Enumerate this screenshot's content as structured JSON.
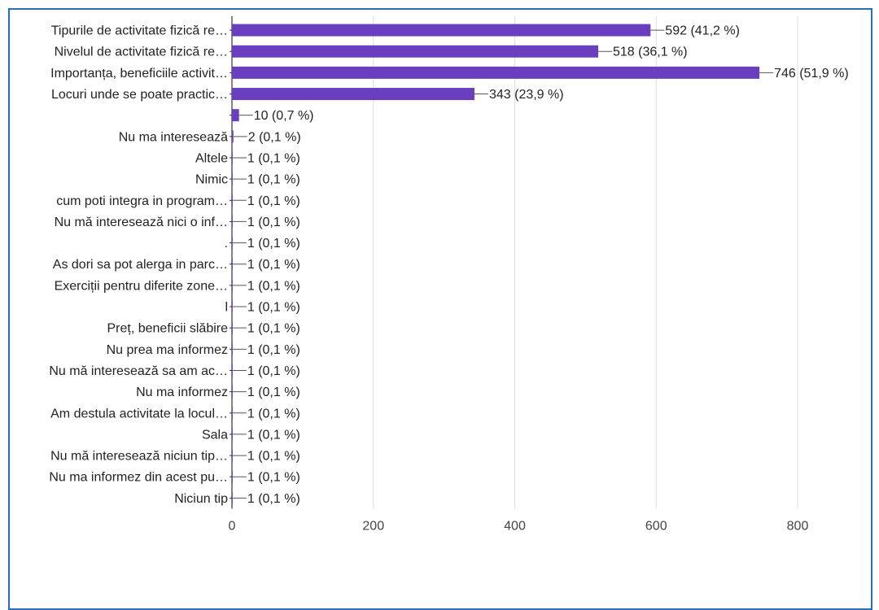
{
  "chart_data": {
    "type": "bar",
    "orientation": "horizontal",
    "title": "",
    "xlabel": "",
    "ylabel": "",
    "xlim": [
      0,
      800
    ],
    "x_ticks": [
      "0",
      "200",
      "400",
      "600",
      "800"
    ],
    "grid": true,
    "legend": "none",
    "bar_color": "#6a3fbf",
    "categories": [
      "Tipurile de activitate fizică re…",
      "Nivelul de activitate fizică re…",
      "Importanța, beneficiile activit…",
      "Locuri unde se poate practic…",
      "",
      "Nu ma interesează",
      "Altele",
      "Nimic",
      "cum poti integra in program…",
      "Nu mă interesează nici o inf…",
      ".",
      "As dori sa pot alerga in parc…",
      "Exerciții pentru diferite zone…",
      "l",
      "Preț, beneficii slăbire",
      "Nu prea ma informez",
      "Nu mă interesează sa am ac…",
      "Nu ma informez",
      "Am destula activitate la locul…",
      "Sala",
      "Nu mă interesează niciun tip…",
      "Nu ma informez din acest pu…",
      "Niciun tip"
    ],
    "values": [
      592,
      518,
      746,
      343,
      10,
      2,
      1,
      1,
      1,
      1,
      1,
      1,
      1,
      1,
      1,
      1,
      1,
      1,
      1,
      1,
      1,
      1,
      1
    ],
    "value_labels": [
      "592 (41,2 %)",
      "518 (36,1 %)",
      "746 (51,9 %)",
      "343 (23,9 %)",
      "10 (0,7 %)",
      "2 (0,1 %)",
      "1 (0,1 %)",
      "1 (0,1 %)",
      "1 (0,1 %)",
      "1 (0,1 %)",
      "1 (0,1 %)",
      "1 (0,1 %)",
      "1 (0,1 %)",
      "1 (0,1 %)",
      "1 (0,1 %)",
      "1 (0,1 %)",
      "1 (0,1 %)",
      "1 (0,1 %)",
      "1 (0,1 %)",
      "1 (0,1 %)",
      "1 (0,1 %)",
      "1 (0,1 %)",
      "1 (0,1 %)"
    ]
  }
}
